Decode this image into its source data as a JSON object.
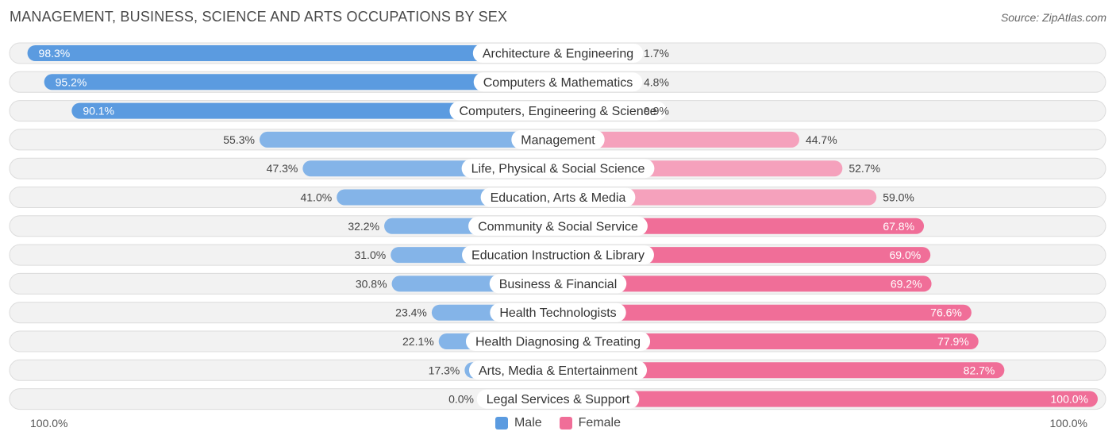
{
  "chart_data": {
    "type": "bar",
    "orientation": "horizontal-diverging",
    "title": "MANAGEMENT, BUSINESS, SCIENCE AND ARTS OCCUPATIONS BY SEX",
    "source": "Source: ZipAtlas.com",
    "categories": [
      "Architecture & Engineering",
      "Computers & Mathematics",
      "Computers, Engineering & Science",
      "Management",
      "Life, Physical & Social Science",
      "Education, Arts & Media",
      "Community & Social Service",
      "Education Instruction & Library",
      "Business & Financial",
      "Health Technologists",
      "Health Diagnosing & Treating",
      "Arts, Media & Entertainment",
      "Legal Services & Support"
    ],
    "series": [
      {
        "name": "Male",
        "color": "#5b9be0",
        "values": [
          98.3,
          95.2,
          90.1,
          55.3,
          47.3,
          41.0,
          32.2,
          31.0,
          30.8,
          23.4,
          22.1,
          17.3,
          0.0
        ],
        "labels": [
          "98.3%",
          "95.2%",
          "90.1%",
          "55.3%",
          "47.3%",
          "41.0%",
          "32.2%",
          "31.0%",
          "30.8%",
          "23.4%",
          "22.1%",
          "17.3%",
          "0.0%"
        ]
      },
      {
        "name": "Female",
        "color": "#f06e98",
        "values": [
          1.7,
          4.8,
          9.9,
          44.7,
          52.7,
          59.0,
          67.8,
          69.0,
          69.2,
          76.6,
          77.9,
          82.7,
          100.0
        ],
        "labels": [
          "1.7%",
          "4.8%",
          "9.9%",
          "44.7%",
          "52.7%",
          "59.0%",
          "67.8%",
          "69.0%",
          "69.2%",
          "76.6%",
          "77.9%",
          "82.7%",
          "100.0%"
        ]
      }
    ],
    "xlim": [
      -100,
      100
    ],
    "axis_labels": {
      "left": "100.0%",
      "right": "100.0%"
    },
    "legend": {
      "position": "bottom-center",
      "items": [
        "Male",
        "Female"
      ]
    }
  }
}
